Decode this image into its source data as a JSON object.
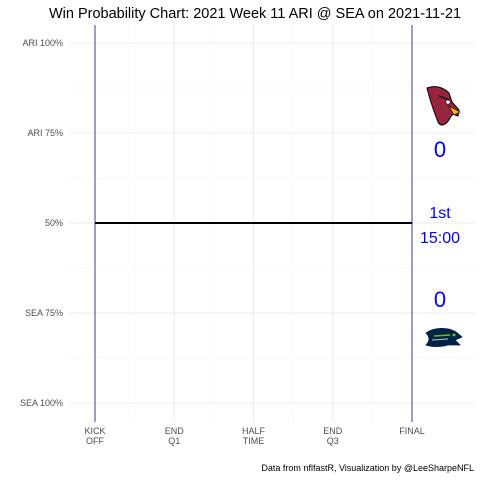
{
  "chart_data": {
    "type": "line",
    "title": "Win Probability Chart: 2021 Week 11 ARI @ SEA on 2021-11-21",
    "caption": "Data from nflfastR, Visualization by @LeeSharpeNFL",
    "y_ticks": [
      {
        "value": 1.0,
        "label": "ARI 100%"
      },
      {
        "value": 0.75,
        "label": "ARI 75%"
      },
      {
        "value": 0.5,
        "label": "50%"
      },
      {
        "value": 0.25,
        "label": "SEA 75%"
      },
      {
        "value": 0.0,
        "label": "SEA 100%"
      }
    ],
    "ylim": [
      0,
      1
    ],
    "x_ticks": [
      {
        "value": 0,
        "label": [
          "KICK",
          "OFF"
        ]
      },
      {
        "value": 900,
        "label": [
          "END",
          "Q1"
        ]
      },
      {
        "value": 1800,
        "label": [
          "HALF",
          "TIME"
        ]
      },
      {
        "value": 2700,
        "label": [
          "END",
          "Q3"
        ]
      },
      {
        "value": 3600,
        "label": [
          "FINAL"
        ]
      }
    ],
    "xlim": [
      0,
      3600
    ],
    "grid": true,
    "series": [
      {
        "values": [
          {
            "x": 0,
            "y": 0.5
          },
          {
            "x": 3600,
            "y": 0.5
          }
        ],
        "color": "#000000"
      }
    ],
    "boundaries": [
      0,
      3600
    ],
    "teams": {
      "away": {
        "abbr": "ARI",
        "score": "0",
        "logo": "cardinals-logo-icon",
        "color": "#97233f"
      },
      "home": {
        "abbr": "SEA",
        "score": "0",
        "logo": "seahawks-logo-icon",
        "color": "#002244"
      }
    },
    "game_clock": {
      "quarter": "1st",
      "time": "15:00"
    }
  }
}
